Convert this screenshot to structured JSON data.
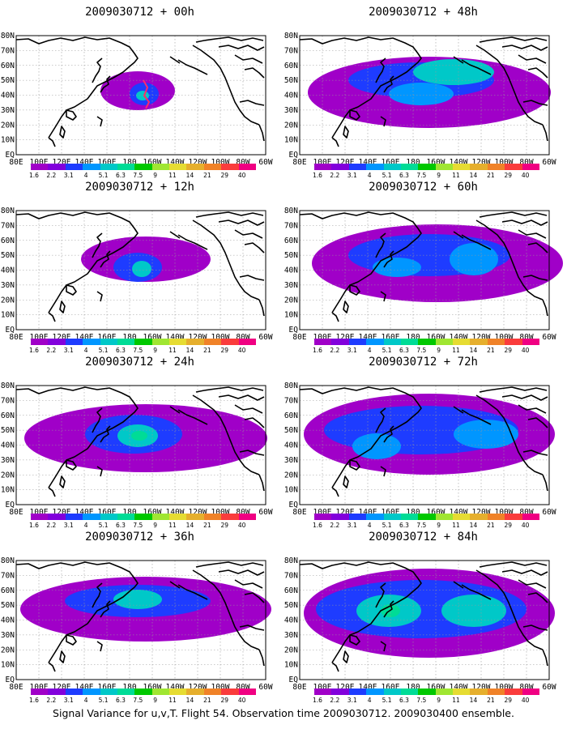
{
  "panels": [
    {
      "title": "2009030712 + 00h",
      "lead": "00h"
    },
    {
      "title": "2009030712 + 48h",
      "lead": "48h"
    },
    {
      "title": "2009030712 + 12h",
      "lead": "12h"
    },
    {
      "title": "2009030712 + 60h",
      "lead": "60h"
    },
    {
      "title": "2009030712 + 24h",
      "lead": "24h"
    },
    {
      "title": "2009030712 + 72h",
      "lead": "72h"
    },
    {
      "title": "2009030712 + 36h",
      "lead": "36h"
    },
    {
      "title": "2009030712 + 84h",
      "lead": "84h"
    }
  ],
  "lon_labels": [
    "80E",
    "100E",
    "120E",
    "140E",
    "160E",
    "180",
    "160W",
    "140W",
    "120W",
    "100W",
    "80W",
    "60W"
  ],
  "lat_labels": [
    "80N",
    "70N",
    "60N",
    "50N",
    "40N",
    "30N",
    "20N",
    "10N",
    "EQ"
  ],
  "colorbar": {
    "levels": [
      "1.6",
      "2.2",
      "3.1",
      "4",
      "5.1",
      "6.3",
      "7.5",
      "9",
      "11",
      "14",
      "21",
      "29",
      "40"
    ],
    "colors": [
      "#a000c8",
      "#8200dc",
      "#1e3cff",
      "#0096ff",
      "#00c8c8",
      "#00dc96",
      "#00c800",
      "#a0e632",
      "#e6dc32",
      "#e6af2d",
      "#f08228",
      "#fa3c3c",
      "#f00082"
    ]
  },
  "caption": "Signal Variance for u,v,T. Flight 54. Observation time 2009030712. 2009030400 ensemble."
}
